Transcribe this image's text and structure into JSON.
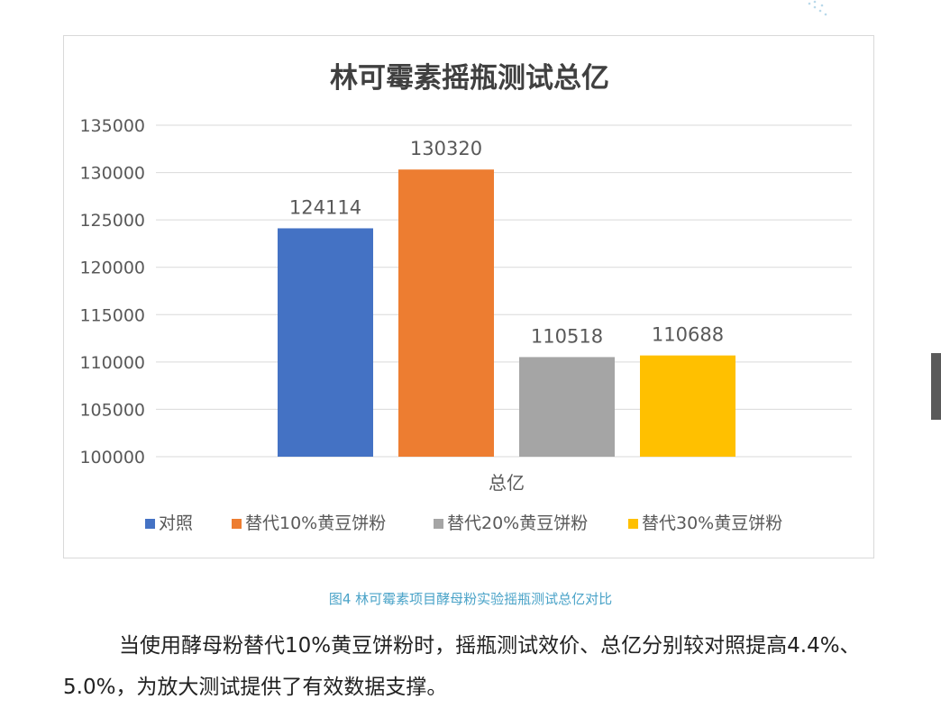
{
  "chart_data": {
    "type": "bar",
    "title": "林可霉素摇瓶测试总亿",
    "categories": [
      "总亿"
    ],
    "series": [
      {
        "name": "对照",
        "values": [
          124114
        ],
        "color": "#4472C4"
      },
      {
        "name": "替代10%黄豆饼粉",
        "values": [
          130320
        ],
        "color": "#ED7D31"
      },
      {
        "name": "替代20%黄豆饼粉",
        "values": [
          110518
        ],
        "color": "#A5A5A5"
      },
      {
        "name": "替代30%黄豆饼粉",
        "values": [
          110688
        ],
        "color": "#FFC000"
      }
    ],
    "ylim": [
      100000,
      135000
    ],
    "yticks": [
      100000,
      105000,
      110000,
      115000,
      120000,
      125000,
      130000,
      135000
    ],
    "xlabel": "",
    "ylabel": "",
    "grid": true,
    "legend": "bottom",
    "data_labels": true
  },
  "caption": "图4 林可霉素项目酵母粉实验摇瓶测试总亿对比",
  "body_text": "当使用酵母粉替代10%黄豆饼粉时，摇瓶测试效价、总亿分别较对照提高4.4%、5.0%，为放大测试提供了有效数据支撑。"
}
